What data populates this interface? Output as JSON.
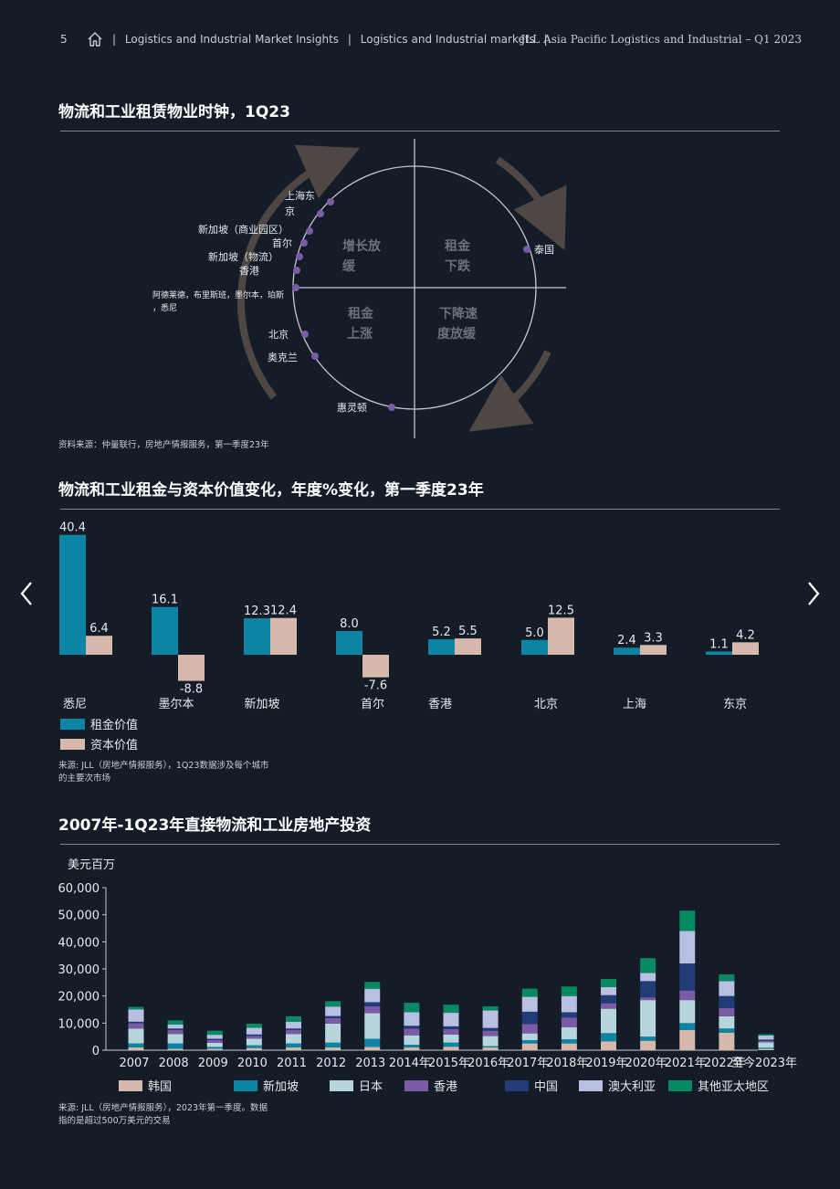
{
  "header": {
    "page_number": "5",
    "crumb1": "Logistics and Industrial Market Insights",
    "crumb2": "Logistics and Industrial markets",
    "report_title": "JLL Asia Pacific Logistics and Industrial – Q1 2023",
    "sep": "|"
  },
  "clock": {
    "title": "物流和工业租赁物业时钟，1Q23",
    "source": "资料来源：仲量联行，房地产情报服务，第一季度23年",
    "quadrants": [
      {
        "line1": "增长放",
        "line2": "缓"
      },
      {
        "line1": "租金",
        "line2": "下跌"
      },
      {
        "line1": "租金",
        "line2": "上涨"
      },
      {
        "line1": "下降速",
        "line2": "度放缓"
      }
    ],
    "markets": [
      {
        "line1": "上海东",
        "line2": "京"
      },
      {
        "line1": "新加坡（商业园区）"
      },
      {
        "line1": "首尔"
      },
      {
        "line1": "新加坡（物流）"
      },
      {
        "line1": "香港"
      },
      {
        "line1": "阿德莱德，布里斯班，墨尔本，珀斯",
        "line2": "，悉尼"
      },
      {
        "line1": "北京"
      },
      {
        "line1": "奥克兰"
      },
      {
        "line1": "惠灵顿"
      },
      {
        "line1": "泰国"
      }
    ],
    "dot_color": "#7b5ba6"
  },
  "rents": {
    "title": "物流和工业租金与资本价值变化，年度%变化，第一季度23年",
    "source_line1": "来源: JLL（房地产情报服务），1Q23数据涉及每个城市",
    "source_line2": "的主要次市场"
  },
  "investment": {
    "title": "2007年-1Q23年直接物流和工业房地产投资",
    "unit": "美元百万",
    "source_line1": "来源: JLL（房地产情报服务），2023年第一季度。数据",
    "source_line2": "指的是超过500万美元的交易"
  },
  "chart_data": [
    {
      "type": "bar",
      "categories": [
        "悉尼",
        "墨尔本",
        "新加坡",
        "首尔",
        "香港",
        "北京",
        "上海",
        "东京"
      ],
      "series": [
        {
          "name": "租金价值",
          "color": "#0b84a5",
          "values": [
            40.4,
            16.1,
            12.3,
            8.0,
            5.2,
            5.0,
            2.4,
            1.1
          ]
        },
        {
          "name": "资本价值",
          "color": "#d6b9aa",
          "values": [
            6.4,
            -8.8,
            12.4,
            -7.6,
            5.5,
            12.5,
            3.3,
            4.2
          ]
        }
      ],
      "data_labels": {
        "rent": [
          "40.4",
          "16.1",
          "12.3",
          "8.0",
          "5.2",
          "5.0",
          "2.4",
          "1.1"
        ],
        "capital": [
          "6.4",
          "-8.8",
          "12.4",
          "-7.6",
          "5.5",
          "12.5",
          "3.3",
          "4.2"
        ]
      },
      "legend_position": "bottom-left"
    },
    {
      "type": "bar",
      "stacked": true,
      "categories": [
        "2007",
        "2008",
        "2009",
        "2010",
        "2011",
        "2012",
        "2013",
        "2014年",
        "2015年",
        "2016年",
        "2017年",
        "2018年",
        "2019年",
        "2020年",
        "2021年",
        "2022年",
        "至今2023年"
      ],
      "ylabel": "美元百万",
      "ylim": [
        0,
        60000
      ],
      "y_ticks": [
        "0",
        "10,000",
        "20,000",
        "30,000",
        "40,000",
        "50,000",
        "60,000"
      ],
      "y_tick_values": [
        0,
        10000,
        20000,
        30000,
        40000,
        50000,
        60000
      ],
      "series": [
        {
          "name": "韩国",
          "color": "#d6b9aa",
          "values": [
            1000,
            500,
            500,
            800,
            1000,
            1000,
            1200,
            1000,
            1300,
            1000,
            2500,
            2500,
            3300,
            3500,
            7500,
            6500,
            500
          ]
        },
        {
          "name": "新加坡",
          "color": "#0b84a5",
          "values": [
            1500,
            2000,
            700,
            1000,
            1500,
            1800,
            3000,
            1000,
            1500,
            500,
            1200,
            1500,
            3000,
            1500,
            2500,
            1500,
            400
          ]
        },
        {
          "name": "日本",
          "color": "#b7d5dd",
          "values": [
            5500,
            3500,
            1500,
            2500,
            3500,
            7000,
            9500,
            3500,
            3000,
            3700,
            2500,
            4500,
            9000,
            13500,
            8500,
            4500,
            2000
          ]
        },
        {
          "name": "香港",
          "color": "#7b5ba6",
          "values": [
            2000,
            1500,
            1000,
            1000,
            1500,
            2000,
            2500,
            2500,
            2000,
            2000,
            3500,
            3500,
            2000,
            1000,
            3500,
            3000,
            500
          ]
        },
        {
          "name": "中国",
          "color": "#213d78",
          "values": [
            500,
            500,
            500,
            500,
            500,
            800,
            1500,
            1000,
            1000,
            1000,
            4500,
            2000,
            3000,
            6000,
            10000,
            4500,
            500
          ]
        },
        {
          "name": "澳大利亚",
          "color": "#b9bfe3",
          "values": [
            4500,
            1500,
            1500,
            2500,
            2500,
            3500,
            5000,
            5000,
            5000,
            6500,
            5500,
            6000,
            3000,
            3000,
            12000,
            5500,
            1500
          ]
        },
        {
          "name": "其他亚太地区",
          "color": "#078a64",
          "values": [
            1000,
            1500,
            1500,
            1500,
            2000,
            2000,
            2500,
            3500,
            3000,
            1500,
            3000,
            3500,
            3000,
            5500,
            7500,
            2500,
            500
          ]
        }
      ],
      "legend_position": "bottom"
    }
  ]
}
